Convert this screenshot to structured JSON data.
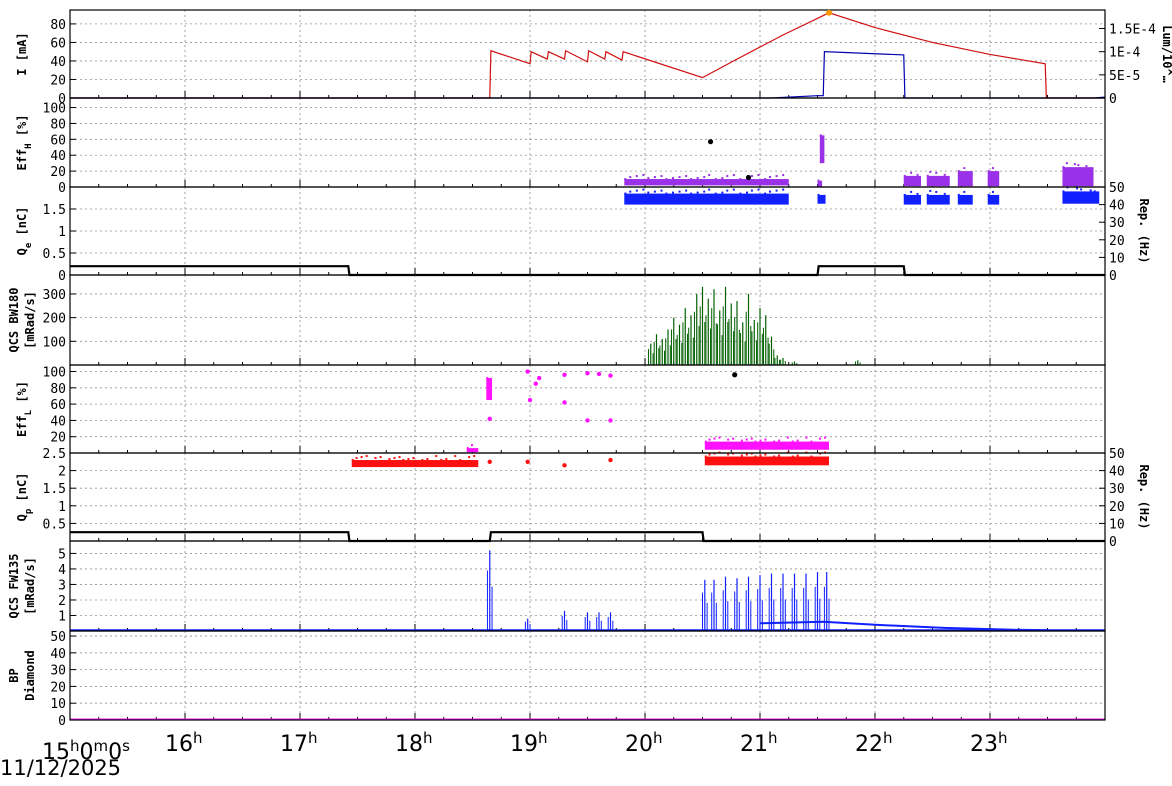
{
  "date_label": "11/12/2025",
  "x_axis": {
    "type": "time",
    "hours": [
      15,
      16,
      17,
      18,
      19,
      20,
      21,
      22,
      23
    ],
    "first_tick": {
      "h": "15",
      "rest": "0",
      "m": "m",
      "s": "0",
      "s_unit": "s"
    },
    "unit": "h"
  },
  "colors": {
    "current": "#d01010",
    "current_b": "#0000b0",
    "violet": "#9a30e8",
    "blue": "#1020ff",
    "green": "#006000",
    "magenta": "#ff10ff",
    "red": "#ff1010",
    "rep": "#000000",
    "grid": "#909090"
  },
  "chart_data": [
    {
      "type": "line",
      "ylabel": [
        "I [mA]"
      ],
      "ylim": [
        0,
        95
      ],
      "yticks": [
        0,
        20,
        40,
        60,
        80
      ],
      "right_axis": {
        "ticks": [
          "0",
          "5E-5",
          "1E-4",
          "1.5E-4"
        ],
        "ylim": [
          0,
          0.00019
        ],
        "label": "Lum/10^…"
      },
      "series": [
        {
          "color": "current",
          "x": [
            15.0,
            18.65,
            18.66,
            19.0,
            19.01,
            19.15,
            19.16,
            19.3,
            19.31,
            19.5,
            19.51,
            19.65,
            19.66,
            19.8,
            19.81,
            20.5,
            20.8,
            21.2,
            21.6,
            22.0,
            22.5,
            23.0,
            23.48,
            23.49,
            24.0
          ],
          "y": [
            0,
            0,
            51,
            37,
            50,
            42,
            50,
            42,
            51,
            39,
            51,
            42,
            50,
            41,
            50,
            22,
            42,
            68,
            92,
            76,
            60,
            47,
            37,
            0,
            0
          ]
        },
        {
          "color": "current_b",
          "right_scale": true,
          "x": [
            15.0,
            21.1,
            21.5,
            21.55,
            21.56,
            22.25,
            22.26,
            23.9,
            24.0
          ],
          "y": [
            0,
            0,
            5e-06,
            5e-06,
            0.0001,
            9.3e-05,
            0,
            0,
            2e-06
          ]
        }
      ]
    },
    {
      "type": "scatter",
      "ylabel": [
        "Eff",
        "H",
        " [%]"
      ],
      "ylim": [
        0,
        112
      ],
      "yticks": [
        0,
        20,
        40,
        60,
        80,
        100
      ],
      "series": [
        {
          "color": "violet",
          "bands": [
            [
              19.82,
              21.25,
              2,
              10
            ],
            [
              21.52,
              21.56,
              30,
              65
            ],
            [
              21.5,
              21.54,
              0,
              8
            ],
            [
              22.25,
              22.4,
              1,
              14
            ],
            [
              22.45,
              22.65,
              1,
              14
            ],
            [
              22.72,
              22.85,
              1,
              20
            ],
            [
              22.98,
              23.08,
              1,
              20
            ],
            [
              23.63,
              23.9,
              1,
              25
            ]
          ]
        },
        {
          "color": "rep",
          "points": [
            [
              20.57,
              57
            ],
            [
              20.9,
              12
            ]
          ]
        }
      ]
    },
    {
      "type": "scatter",
      "ylabel": [
        "Q",
        "e",
        " [nC]"
      ],
      "ylim": [
        0,
        2
      ],
      "yticks": [
        0,
        0.5,
        1,
        1.5
      ],
      "right_axis": {
        "ticks": [
          "0",
          "10",
          "20",
          "30",
          "40",
          "50"
        ],
        "ylim": [
          0,
          50
        ],
        "label": "Rep. (Hz)"
      },
      "series": [
        {
          "color": "blue",
          "bands": [
            [
              19.82,
              21.25,
              1.6,
              1.85
            ],
            [
              21.5,
              21.57,
              1.62,
              1.82
            ],
            [
              22.25,
              22.4,
              1.6,
              1.82
            ],
            [
              22.45,
              22.65,
              1.6,
              1.82
            ],
            [
              22.72,
              22.85,
              1.6,
              1.82
            ],
            [
              22.98,
              23.08,
              1.6,
              1.82
            ],
            [
              23.63,
              23.95,
              1.62,
              1.9
            ]
          ]
        },
        {
          "color": "rep",
          "rep": true,
          "x": [
            15.0,
            17.42,
            17.43,
            21.5,
            21.51,
            22.25,
            22.26,
            24.0
          ],
          "y": [
            5,
            5,
            0,
            0,
            5,
            5,
            0,
            0
          ]
        }
      ]
    },
    {
      "type": "bar",
      "ylabel": [
        "QCS BW180",
        "[mRad/s]"
      ],
      "ylim": [
        0,
        380
      ],
      "yticks": [
        100,
        200,
        300
      ],
      "series": [
        {
          "color": "green",
          "spikes": [
            [
              20.05,
              90
            ],
            [
              20.1,
              130
            ],
            [
              20.15,
              110
            ],
            [
              20.2,
              150
            ],
            [
              20.25,
              200
            ],
            [
              20.3,
              170
            ],
            [
              20.35,
              240
            ],
            [
              20.4,
              210
            ],
            [
              20.45,
              300
            ],
            [
              20.5,
              330
            ],
            [
              20.55,
              280
            ],
            [
              20.6,
              320
            ],
            [
              20.65,
              230
            ],
            [
              20.7,
              330
            ],
            [
              20.75,
              260
            ],
            [
              20.8,
              270
            ],
            [
              20.85,
              180
            ],
            [
              20.9,
              300
            ],
            [
              20.95,
              190
            ],
            [
              21.0,
              240
            ],
            [
              21.05,
              210
            ],
            [
              21.1,
              120
            ],
            [
              21.15,
              40
            ],
            [
              21.2,
              30
            ],
            [
              21.3,
              15
            ],
            [
              21.85,
              20
            ]
          ]
        }
      ]
    },
    {
      "type": "scatter",
      "ylabel": [
        "Eff",
        "L",
        " [%]"
      ],
      "ylim": [
        0,
        108
      ],
      "yticks": [
        20,
        40,
        60,
        80,
        100
      ],
      "series": [
        {
          "color": "magenta",
          "bands": [
            [
              18.45,
              18.55,
              1,
              6
            ],
            [
              18.62,
              18.67,
              65,
              92
            ],
            [
              20.52,
              21.6,
              4,
              14
            ]
          ],
          "points": [
            [
              18.65,
              42
            ],
            [
              18.98,
              100
            ],
            [
              19.0,
              65
            ],
            [
              19.05,
              85
            ],
            [
              19.08,
              92
            ],
            [
              19.3,
              96
            ],
            [
              19.3,
              62
            ],
            [
              19.5,
              98
            ],
            [
              19.5,
              40
            ],
            [
              19.6,
              97
            ],
            [
              19.7,
              40
            ],
            [
              19.7,
              95
            ]
          ]
        },
        {
          "color": "rep",
          "points": [
            [
              20.78,
              96
            ]
          ]
        }
      ]
    },
    {
      "type": "scatter",
      "ylabel": [
        "Q",
        "p",
        " [nC]"
      ],
      "ylim": [
        0,
        2.5
      ],
      "yticks": [
        0.5,
        1,
        1.5,
        2,
        2.5
      ],
      "right_axis": {
        "ticks": [
          "0",
          "10",
          "20",
          "30",
          "40",
          "50"
        ],
        "ylim": [
          0,
          50
        ],
        "label": "Rep. (Hz)"
      },
      "series": [
        {
          "color": "red",
          "bands": [
            [
              17.45,
              18.55,
              2.1,
              2.3
            ],
            [
              20.52,
              21.6,
              2.15,
              2.4
            ]
          ],
          "points": [
            [
              18.65,
              2.25
            ],
            [
              18.98,
              2.25
            ],
            [
              19.3,
              2.15
            ],
            [
              19.7,
              2.3
            ]
          ]
        },
        {
          "color": "rep",
          "rep": true,
          "x": [
            15.0,
            17.42,
            17.43,
            18.65,
            18.66,
            20.5,
            20.51,
            24.0
          ],
          "y": [
            5,
            5,
            0,
            0,
            5,
            5,
            0,
            0
          ]
        }
      ]
    },
    {
      "type": "line",
      "ylabel": [
        "QCS FW135",
        "[mRad/s]"
      ],
      "ylim": [
        0,
        5.8
      ],
      "yticks": [
        1,
        2,
        3,
        4,
        5
      ],
      "baseline": 0.05,
      "series": [
        {
          "color": "blue",
          "spikes": [
            [
              18.65,
              5.2
            ],
            [
              18.98,
              0.8
            ],
            [
              19.3,
              1.3
            ],
            [
              19.5,
              1.2
            ],
            [
              19.6,
              1.2
            ],
            [
              19.7,
              1.2
            ],
            [
              20.52,
              3.3
            ],
            [
              20.6,
              3.3
            ],
            [
              20.7,
              3.5
            ],
            [
              20.8,
              3.4
            ],
            [
              20.9,
              3.5
            ],
            [
              21.0,
              3.6
            ],
            [
              21.1,
              3.7
            ],
            [
              21.2,
              3.7
            ],
            [
              21.3,
              3.7
            ],
            [
              21.4,
              3.7
            ],
            [
              21.5,
              3.8
            ],
            [
              21.58,
              3.8
            ]
          ],
          "plateau": [
            [
              21.0,
              0.5
            ],
            [
              21.55,
              0.6
            ],
            [
              22.0,
              0.4
            ],
            [
              22.6,
              0.2
            ],
            [
              23.2,
              0.08
            ],
            [
              23.5,
              0.05
            ]
          ]
        }
      ]
    },
    {
      "type": "line",
      "ylabel": [
        "BP",
        "Diamond"
      ],
      "ylim": [
        0,
        53
      ],
      "yticks": [
        0,
        10,
        20,
        30,
        40,
        50
      ],
      "series": [
        {
          "color": "magenta",
          "x": [
            15.0,
            24.0
          ],
          "y": [
            0.5,
            0.5
          ]
        }
      ]
    }
  ]
}
